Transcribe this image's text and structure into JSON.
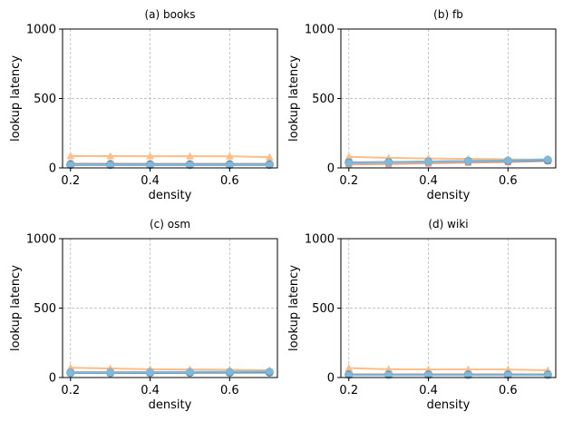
{
  "chart_data": [
    {
      "type": "line",
      "title": "(a) books",
      "xlabel": "density",
      "ylabel": "lookup latency",
      "xlim": [
        0.18,
        0.72
      ],
      "ylim": [
        0,
        1000
      ],
      "xticks": [
        "0.2",
        "0.4",
        "0.6"
      ],
      "yticks": [
        "0",
        "500",
        "1000"
      ],
      "grid": true,
      "x": [
        0.2,
        0.3,
        0.4,
        0.5,
        0.6,
        0.7
      ],
      "series": [
        {
          "color": "#ffbe86",
          "marker": "triangle",
          "values": [
            85,
            85,
            84,
            84,
            83,
            78
          ]
        },
        {
          "color": "#aaaaaa",
          "marker": "circle",
          "values": [
            30,
            30,
            29,
            29,
            29,
            29
          ]
        },
        {
          "color": "#f4a582",
          "marker": "square",
          "values": [
            25,
            24,
            24,
            24,
            24,
            24
          ]
        },
        {
          "color": "#5b8db8",
          "marker": "circle",
          "values": [
            22,
            22,
            22,
            22,
            22,
            22
          ]
        },
        {
          "color": "#7fb8d8",
          "marker": "square",
          "values": [
            20,
            20,
            20,
            20,
            20,
            20
          ]
        }
      ]
    },
    {
      "type": "line",
      "title": "(b) fb",
      "xlabel": "density",
      "ylabel": "lookup latency",
      "xlim": [
        0.18,
        0.72
      ],
      "ylim": [
        0,
        1000
      ],
      "xticks": [
        "0.2",
        "0.4",
        "0.6"
      ],
      "yticks": [
        "0",
        "500",
        "1000"
      ],
      "grid": true,
      "x": [
        0.2,
        0.3,
        0.4,
        0.5,
        0.6,
        0.7
      ],
      "series": [
        {
          "color": "#ffbe86",
          "marker": "triangle",
          "values": [
            80,
            72,
            68,
            65,
            62,
            58
          ]
        },
        {
          "color": "#f4a582",
          "marker": "square",
          "values": [
            25,
            28,
            33,
            38,
            42,
            50
          ]
        },
        {
          "color": "#aaaaaa",
          "marker": "circle",
          "values": [
            40,
            42,
            44,
            46,
            48,
            52
          ]
        },
        {
          "color": "#5b8db8",
          "marker": "circle",
          "values": [
            38,
            42,
            46,
            50,
            52,
            56
          ]
        },
        {
          "color": "#7fb8d8",
          "marker": "hexagon",
          "values": [
            35,
            40,
            45,
            50,
            55,
            62
          ]
        }
      ]
    },
    {
      "type": "line",
      "title": "(c) osm",
      "xlabel": "density",
      "ylabel": "lookup latency",
      "xlim": [
        0.18,
        0.72
      ],
      "ylim": [
        0,
        1000
      ],
      "xticks": [
        "0.2",
        "0.4",
        "0.6"
      ],
      "yticks": [
        "0",
        "500",
        "1000"
      ],
      "grid": true,
      "x": [
        0.2,
        0.3,
        0.4,
        0.5,
        0.6,
        0.7
      ],
      "series": [
        {
          "color": "#ffbe86",
          "marker": "triangle",
          "values": [
            70,
            65,
            60,
            58,
            56,
            52
          ]
        },
        {
          "color": "#aaaaaa",
          "marker": "circle",
          "values": [
            40,
            40,
            40,
            40,
            40,
            40
          ]
        },
        {
          "color": "#f4a582",
          "marker": "square",
          "values": [
            38,
            38,
            38,
            38,
            38,
            38
          ]
        },
        {
          "color": "#5b8db8",
          "marker": "circle",
          "values": [
            33,
            33,
            33,
            34,
            35,
            36
          ]
        },
        {
          "color": "#7fb8d8",
          "marker": "hexagon",
          "values": [
            35,
            36,
            38,
            40,
            42,
            45
          ]
        }
      ]
    },
    {
      "type": "line",
      "title": "(d) wiki",
      "xlabel": "density",
      "ylabel": "lookup latency",
      "xlim": [
        0.18,
        0.72
      ],
      "ylim": [
        0,
        1000
      ],
      "xticks": [
        "0.2",
        "0.4",
        "0.6"
      ],
      "yticks": [
        "0",
        "500",
        "1000"
      ],
      "grid": true,
      "x": [
        0.2,
        0.3,
        0.4,
        0.5,
        0.6,
        0.7
      ],
      "series": [
        {
          "color": "#ffbe86",
          "marker": "triangle",
          "values": [
            68,
            60,
            58,
            58,
            58,
            52
          ]
        },
        {
          "color": "#aaaaaa",
          "marker": "circle",
          "values": [
            24,
            24,
            24,
            24,
            24,
            24
          ]
        },
        {
          "color": "#f4a582",
          "marker": "square",
          "values": [
            22,
            22,
            22,
            22,
            22,
            22
          ]
        },
        {
          "color": "#5b8db8",
          "marker": "circle",
          "values": [
            20,
            20,
            20,
            20,
            20,
            20
          ]
        },
        {
          "color": "#7fb8d8",
          "marker": "square",
          "values": [
            18,
            18,
            18,
            18,
            18,
            18
          ]
        }
      ]
    }
  ]
}
